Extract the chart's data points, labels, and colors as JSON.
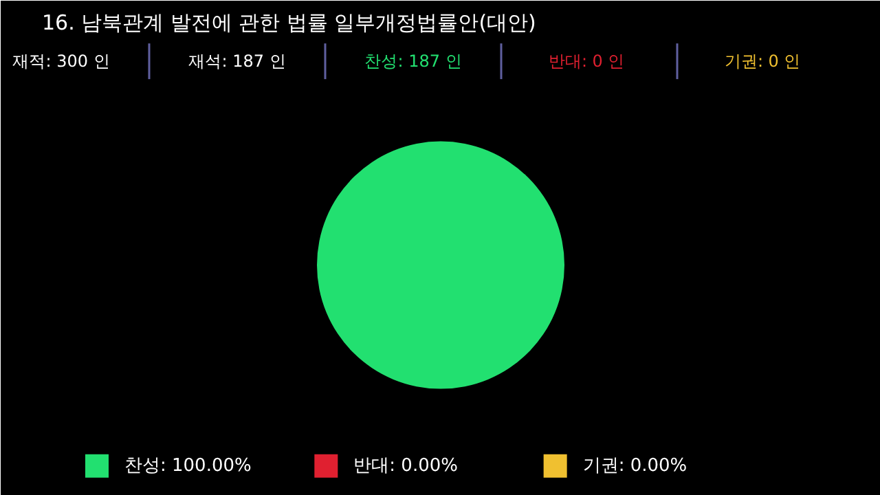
{
  "chart_data": {
    "type": "pie",
    "title": "16. 남북관계 발전에 관한 법률 일부개정법률안(대안)",
    "annotations": [
      "재적: 300 인",
      "재석: 187 인",
      "찬성: 187 인",
      "반대:  0 인",
      "기권:  0 인"
    ],
    "categories": [
      "찬성",
      "반대",
      "기권"
    ],
    "values": [
      100,
      0,
      0
    ],
    "colors": [
      "#22e070",
      "#e02030",
      "#f0c030"
    ],
    "value_labels": [
      "100.00%",
      "0.00%",
      "0.00%"
    ],
    "legend": "bottom"
  }
}
